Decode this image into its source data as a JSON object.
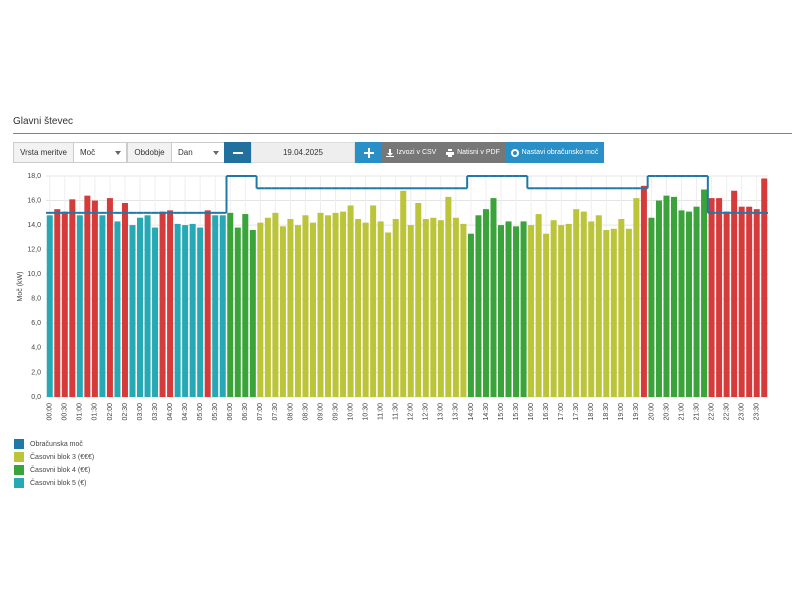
{
  "header": {
    "title": "Glavni števec"
  },
  "toolbar": {
    "measure_label": "Vrsta meritve",
    "measure": "Moč",
    "period_label": "Obdobje",
    "period": "Dan",
    "date": "19.04.2025",
    "csv": "Izvozi v CSV",
    "pdf": "Natisni v PDF",
    "set_power": "Nastavi obračunsko moč"
  },
  "chart_data": {
    "type": "bar",
    "ylabel": "Moč (kW)",
    "categories": [
      "00:00",
      null,
      "00:30",
      null,
      "01:00",
      null,
      "01:30",
      null,
      "02:00",
      null,
      "02:30",
      null,
      "03:00",
      null,
      "03:30",
      null,
      "04:00",
      null,
      "04:30",
      null,
      "05:00",
      null,
      "05:30",
      null,
      "06:00",
      null,
      "06:30",
      null,
      "07:00",
      null,
      "07:30",
      null,
      "08:00",
      null,
      "08:30",
      null,
      "09:00",
      null,
      "09:30",
      null,
      "10:00",
      null,
      "10:30",
      null,
      "11:00",
      null,
      "11:30",
      null,
      "12:00",
      null,
      "12:30",
      null,
      "13:00",
      null,
      "13:30",
      null,
      "14:00",
      null,
      "14:30",
      null,
      "15:00",
      null,
      "15:30",
      null,
      "16:00",
      null,
      "16:30",
      null,
      "17:00",
      null,
      "17:30",
      null,
      "18:00",
      null,
      "18:30",
      null,
      "19:00",
      null,
      "19:30",
      null,
      "20:00",
      null,
      "20:30",
      null,
      "21:00",
      null,
      "21:30",
      null,
      "22:00",
      null,
      "22:30",
      null,
      "23:00",
      null,
      "23:30",
      null
    ],
    "series": [
      {
        "name": "Obračunska moč",
        "type": "step",
        "color": "#1f78a8",
        "values": [
          15,
          15,
          15,
          15,
          15,
          15,
          15,
          15,
          15,
          15,
          15,
          15,
          15,
          15,
          15,
          15,
          15,
          15,
          15,
          15,
          15,
          15,
          15,
          15,
          18,
          18,
          18,
          18,
          17,
          17,
          17,
          17,
          17,
          17,
          17,
          17,
          17,
          17,
          17,
          17,
          17,
          17,
          17,
          17,
          17,
          17,
          17,
          17,
          17,
          17,
          17,
          17,
          17,
          17,
          17,
          17,
          18,
          18,
          18,
          18,
          18,
          18,
          18,
          18,
          17,
          17,
          17,
          17,
          17,
          17,
          17,
          17,
          17,
          17,
          17,
          17,
          17,
          17,
          17,
          17,
          18,
          18,
          18,
          18,
          18,
          18,
          18,
          18,
          15,
          15,
          15,
          15,
          15,
          15,
          15,
          15
        ]
      },
      {
        "name": "Časovni blok 3 (€€€)",
        "color": "#bcc43a",
        "values": [
          null,
          null,
          null,
          null,
          null,
          null,
          null,
          null,
          null,
          null,
          null,
          null,
          null,
          null,
          null,
          null,
          null,
          null,
          null,
          null,
          null,
          null,
          null,
          null,
          null,
          null,
          null,
          null,
          14.2,
          14.6,
          15.0,
          13.9,
          14.5,
          14.0,
          14.8,
          14.2,
          15.0,
          14.8,
          15.0,
          15.1,
          15.6,
          14.5,
          14.2,
          15.6,
          14.3,
          13.4,
          14.5,
          16.8,
          14.0,
          15.8,
          14.5,
          14.6,
          14.4,
          16.3,
          14.6,
          14.1,
          null,
          null,
          null,
          null,
          null,
          null,
          null,
          null,
          14.0,
          14.9,
          13.3,
          14.4,
          14.0,
          14.1,
          15.3,
          15.1,
          14.3,
          14.8,
          13.6,
          13.7,
          14.5,
          13.7,
          16.2,
          17.2,
          null,
          null,
          null,
          null,
          null,
          null,
          null,
          null,
          null,
          null,
          null,
          null,
          null,
          null,
          null,
          null
        ]
      },
      {
        "name": "Časovni blok 4 (€€)",
        "color": "#3aa33a",
        "values": [
          null,
          null,
          null,
          null,
          null,
          null,
          null,
          null,
          null,
          null,
          null,
          null,
          null,
          null,
          null,
          null,
          null,
          null,
          null,
          null,
          null,
          null,
          null,
          null,
          15.0,
          13.8,
          14.9,
          13.6,
          null,
          null,
          null,
          null,
          null,
          null,
          null,
          null,
          null,
          null,
          null,
          null,
          null,
          null,
          null,
          null,
          null,
          null,
          null,
          null,
          null,
          null,
          null,
          null,
          null,
          null,
          null,
          null,
          13.3,
          14.8,
          15.3,
          16.2,
          14.0,
          14.3,
          13.9,
          14.3,
          null,
          null,
          null,
          null,
          null,
          null,
          null,
          null,
          null,
          null,
          null,
          null,
          null,
          null,
          null,
          null,
          14.6,
          16.0,
          16.4,
          16.3,
          15.2,
          15.1,
          15.5,
          16.9,
          null,
          null,
          null,
          null,
          null,
          null,
          null,
          null
        ]
      },
      {
        "name": "Časovni blok 5 (€)",
        "color": "#26a9b5",
        "values": [
          14.8,
          15.3,
          15.1,
          16.1,
          14.8,
          16.4,
          16.0,
          14.8,
          16.2,
          14.3,
          15.8,
          14.0,
          14.6,
          14.8,
          13.8,
          15.1,
          15.2,
          14.1,
          14.0,
          14.1,
          13.8,
          15.2,
          14.8,
          14.8,
          null,
          null,
          null,
          null,
          null,
          null,
          null,
          null,
          null,
          null,
          null,
          null,
          null,
          null,
          null,
          null,
          null,
          null,
          null,
          null,
          null,
          null,
          null,
          null,
          null,
          null,
          null,
          null,
          null,
          null,
          null,
          null,
          null,
          null,
          null,
          null,
          null,
          null,
          null,
          null,
          null,
          null,
          null,
          null,
          null,
          null,
          null,
          null,
          null,
          null,
          null,
          null,
          null,
          null,
          null,
          null,
          null,
          null,
          null,
          null,
          null,
          null,
          null,
          null,
          16.2,
          16.2,
          15.1,
          16.8,
          15.5,
          15.5,
          15.3,
          17.8
        ]
      }
    ],
    "exceed_color": "#d63b3b",
    "ylim": [
      0,
      18
    ],
    "yticks": [
      {
        "value": 0,
        "label": "0,0"
      },
      {
        "value": 2,
        "label": "2,0"
      },
      {
        "value": 4,
        "label": "4,0"
      },
      {
        "value": 6,
        "label": "6,0"
      },
      {
        "value": 8,
        "label": "8,0"
      },
      {
        "value": 10,
        "label": "10,0"
      },
      {
        "value": 12,
        "label": "12,0"
      },
      {
        "value": 14,
        "label": "14,0"
      },
      {
        "value": 16,
        "label": "16,0"
      },
      {
        "value": 18,
        "label": "18,0"
      }
    ],
    "grid": true
  }
}
